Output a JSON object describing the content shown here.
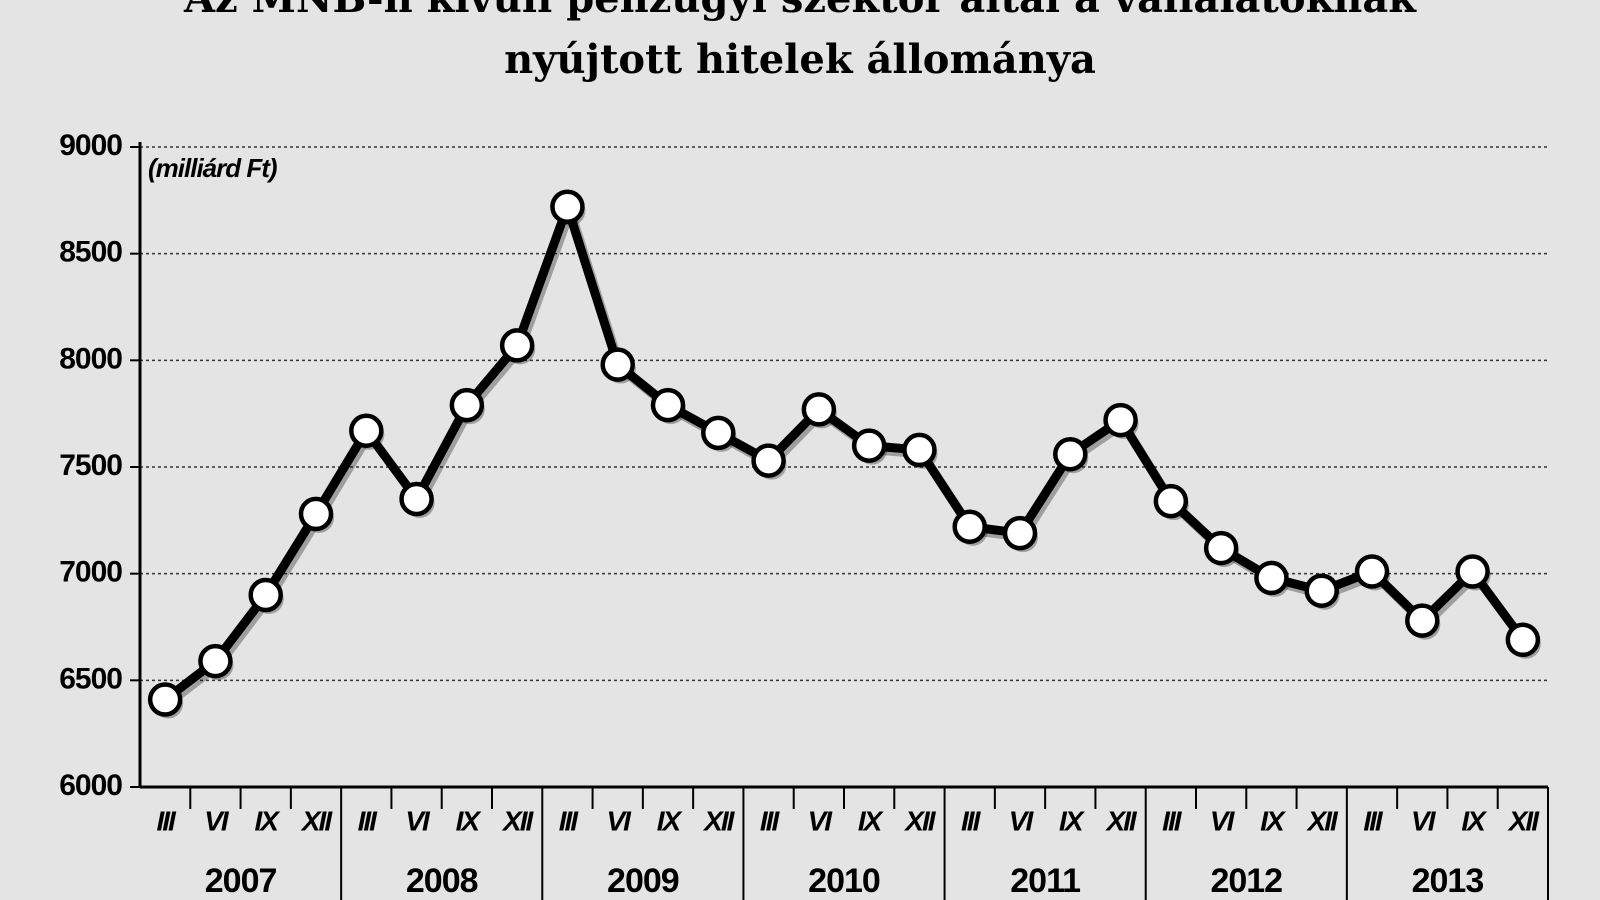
{
  "chart_data": {
    "type": "line",
    "title": [
      "Az MNB-n kívüli pénzügyi szektor által a vállalatoknak",
      "nyújtott hitelek állománya"
    ],
    "unit_label": "(milliárd Ft)",
    "categories": [
      "III",
      "VI",
      "IX",
      "XII",
      "III",
      "VI",
      "IX",
      "XII",
      "III",
      "VI",
      "IX",
      "XII",
      "III",
      "VI",
      "IX",
      "XII",
      "III",
      "VI",
      "IX",
      "XII",
      "III",
      "VI",
      "IX",
      "XII",
      "III",
      "VI",
      "IX",
      "XII"
    ],
    "years": [
      "2007",
      "2008",
      "2009",
      "2010",
      "2011",
      "2012",
      "2013"
    ],
    "series": [
      {
        "color": "#000000",
        "values": [
          6410,
          6590,
          6900,
          7280,
          7670,
          7350,
          7790,
          8070,
          8720,
          7980,
          7790,
          7660,
          7530,
          7770,
          7600,
          7580,
          7220,
          7190,
          7560,
          7720,
          7340,
          7120,
          6980,
          6920,
          7010,
          6780,
          7010,
          6690
        ]
      }
    ],
    "ylim": [
      6000,
      9000
    ],
    "yticks": [
      6000,
      6500,
      7000,
      7500,
      8000,
      8500,
      9000
    ],
    "grid": true
  }
}
